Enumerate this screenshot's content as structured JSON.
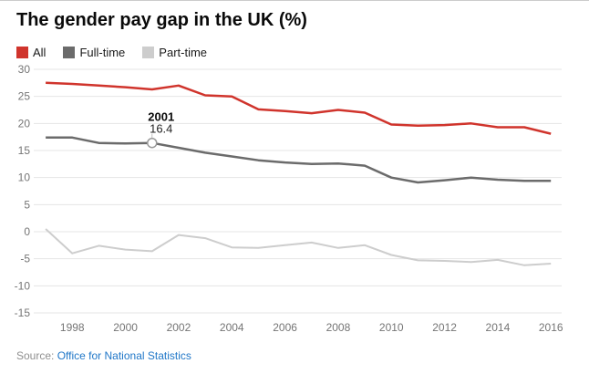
{
  "source": {
    "prefix": "Source:",
    "link_text": "Office for National Statistics"
  },
  "colors": {
    "all_red": "#d0342c",
    "full_time_gray": "#6b6b6b",
    "part_time_gray": "#cdcdcd",
    "gridline": "#e4e4e4",
    "axis_label": "#757575",
    "link_blue": "#2077c8",
    "marker_stroke": "#999999"
  },
  "chart_data": {
    "type": "line",
    "title": "The gender pay gap in the UK (%)",
    "x": [
      1997,
      1998,
      1999,
      2000,
      2001,
      2002,
      2003,
      2004,
      2005,
      2006,
      2007,
      2008,
      2009,
      2010,
      2011,
      2012,
      2013,
      2014,
      2015,
      2016
    ],
    "series": [
      {
        "name": "All",
        "color": "#d0342c",
        "values": [
          27.5,
          27.3,
          27.0,
          26.7,
          26.3,
          27.0,
          25.2,
          25.0,
          22.6,
          22.3,
          21.9,
          22.5,
          22.0,
          19.8,
          19.6,
          19.7,
          20.0,
          19.3,
          19.3,
          18.1
        ]
      },
      {
        "name": "Full-time",
        "color": "#6b6b6b",
        "values": [
          17.4,
          17.4,
          16.4,
          16.3,
          16.4,
          15.5,
          14.6,
          13.9,
          13.2,
          12.8,
          12.5,
          12.6,
          12.2,
          10.0,
          9.1,
          9.5,
          10.0,
          9.6,
          9.4,
          9.4
        ]
      },
      {
        "name": "Part-time",
        "color": "#cdcdcd",
        "values": [
          0.5,
          -4.0,
          -2.6,
          -3.3,
          -3.6,
          -0.6,
          -1.2,
          -2.9,
          -3.0,
          -2.5,
          -2.0,
          -3.0,
          -2.5,
          -4.3,
          -5.3,
          -5.4,
          -5.6,
          -5.2,
          -6.2,
          -5.9
        ]
      }
    ],
    "ylim": [
      -15,
      30
    ],
    "yticks": [
      30,
      25,
      20,
      15,
      10,
      5,
      0,
      -5,
      -10,
      -15
    ],
    "xticks": [
      1998,
      2000,
      2002,
      2004,
      2006,
      2008,
      2010,
      2012,
      2014,
      2016
    ],
    "grid": true,
    "legend_position": "top",
    "annotation": {
      "series": "Full-time",
      "year": 2001,
      "value": 16.4,
      "label_year": "2001",
      "label_value": "16.4"
    }
  }
}
